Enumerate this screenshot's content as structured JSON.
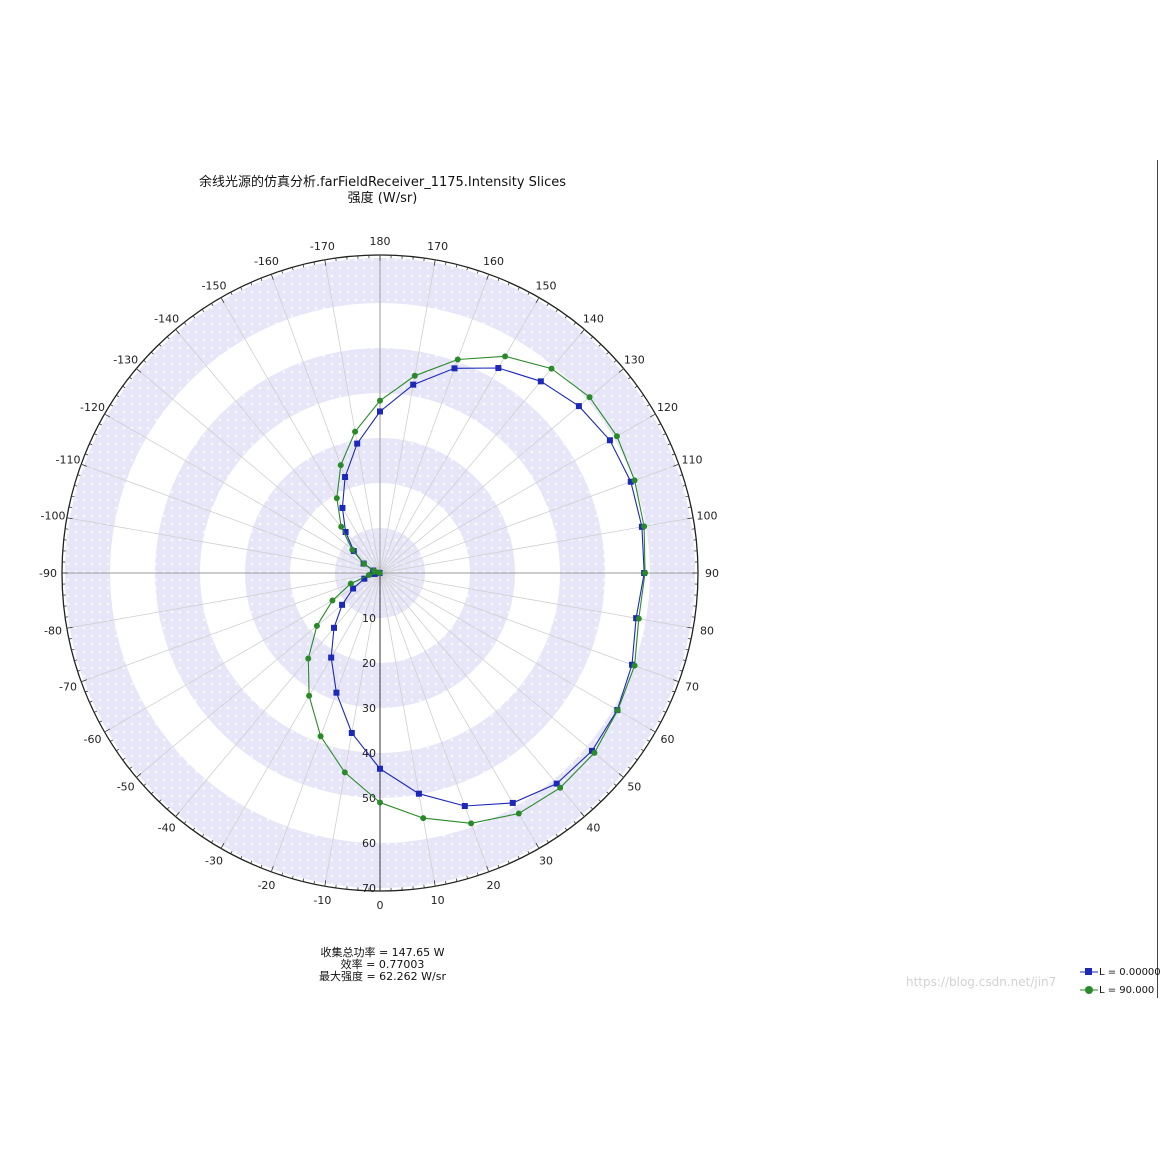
{
  "chart_data": {
    "type": "polar-line",
    "title": "余线光源的仿真分析.farFieldReceiver_1175.Intensity Slices",
    "subtitle": "强度 (W/sr)",
    "angle_ticks": [
      "0",
      "10",
      "20",
      "30",
      "40",
      "50",
      "60",
      "70",
      "80",
      "90",
      "100",
      "110",
      "120",
      "130",
      "140",
      "150",
      "160",
      "170",
      "180",
      "-170",
      "-160",
      "-150",
      "-140",
      "-130",
      "-120",
      "-110",
      "-100",
      "-90",
      "-80",
      "-70",
      "-60",
      "-50",
      "-40",
      "-30",
      "-20",
      "-10"
    ],
    "radial_ticks": [
      "0",
      "10",
      "20",
      "30",
      "40",
      "50",
      "60",
      "70"
    ],
    "radial_range": [
      0,
      70
    ],
    "angle_range": [
      -180,
      180
    ],
    "angle_step": 10,
    "series": [
      {
        "name": "L = 0.00000",
        "color": "#1c28b8",
        "marker": "square",
        "points": [
          [
            -90,
            0.1
          ],
          [
            -80,
            1.2
          ],
          [
            -70,
            3.7
          ],
          [
            -60,
            6.9
          ],
          [
            -50,
            11.0
          ],
          [
            -40,
            15.9
          ],
          [
            -30,
            21.7
          ],
          [
            -20,
            28.3
          ],
          [
            -10,
            36.1
          ],
          [
            0,
            43.5
          ],
          [
            10,
            49.8
          ],
          [
            20,
            55.1
          ],
          [
            30,
            59.0
          ],
          [
            40,
            61.1
          ],
          [
            50,
            61.5
          ],
          [
            60,
            60.9
          ],
          [
            70,
            59.6
          ],
          [
            80,
            57.8
          ],
          [
            90,
            58.7
          ],
          [
            100,
            59.1
          ],
          [
            110,
            59.3
          ],
          [
            120,
            59.0
          ],
          [
            130,
            57.7
          ],
          [
            140,
            55.6
          ],
          [
            150,
            52.6
          ],
          [
            160,
            48.4
          ],
          [
            170,
            42.5
          ],
          [
            180,
            35.9
          ],
          [
            -170,
            29.2
          ],
          [
            -160,
            22.7
          ],
          [
            -150,
            16.7
          ],
          [
            -140,
            11.9
          ],
          [
            -130,
            7.6
          ],
          [
            -120,
            4.2
          ],
          [
            -110,
            1.6
          ],
          [
            -100,
            0.3
          ]
        ]
      },
      {
        "name": "L = 90.000",
        "color": "#2a8a2a",
        "marker": "circle",
        "points": [
          [
            -90,
            0.1
          ],
          [
            -80,
            2.5
          ],
          [
            -70,
            6.9
          ],
          [
            -60,
            12.2
          ],
          [
            -50,
            18.3
          ],
          [
            -40,
            24.8
          ],
          [
            -30,
            31.5
          ],
          [
            -20,
            38.6
          ],
          [
            -10,
            45.0
          ],
          [
            0,
            51.0
          ],
          [
            10,
            55.3
          ],
          [
            20,
            59.2
          ],
          [
            30,
            61.7
          ],
          [
            40,
            62.3
          ],
          [
            50,
            62.2
          ],
          [
            60,
            61.0
          ],
          [
            70,
            60.2
          ],
          [
            80,
            58.4
          ],
          [
            90,
            58.9
          ],
          [
            100,
            59.6
          ],
          [
            110,
            60.2
          ],
          [
            120,
            60.8
          ],
          [
            130,
            60.8
          ],
          [
            140,
            59.3
          ],
          [
            150,
            55.6
          ],
          [
            160,
            50.5
          ],
          [
            170,
            44.5
          ],
          [
            180,
            38.3
          ],
          [
            -170,
            31.9
          ],
          [
            -160,
            25.5
          ],
          [
            -150,
            19.2
          ],
          [
            -140,
            13.4
          ],
          [
            -130,
            8.0
          ],
          [
            -120,
            4.1
          ],
          [
            -110,
            1.4
          ],
          [
            -100,
            0.2
          ]
        ]
      }
    ],
    "legend_placement": "bottom-right"
  },
  "stats": {
    "collected_power": "收集总功率 = 147.65  W",
    "efficiency": "效率 = 0.77003",
    "max_intensity": "最大强度 = 62.262  W/sr"
  },
  "watermark": "https://blog.csdn.net/jin7"
}
